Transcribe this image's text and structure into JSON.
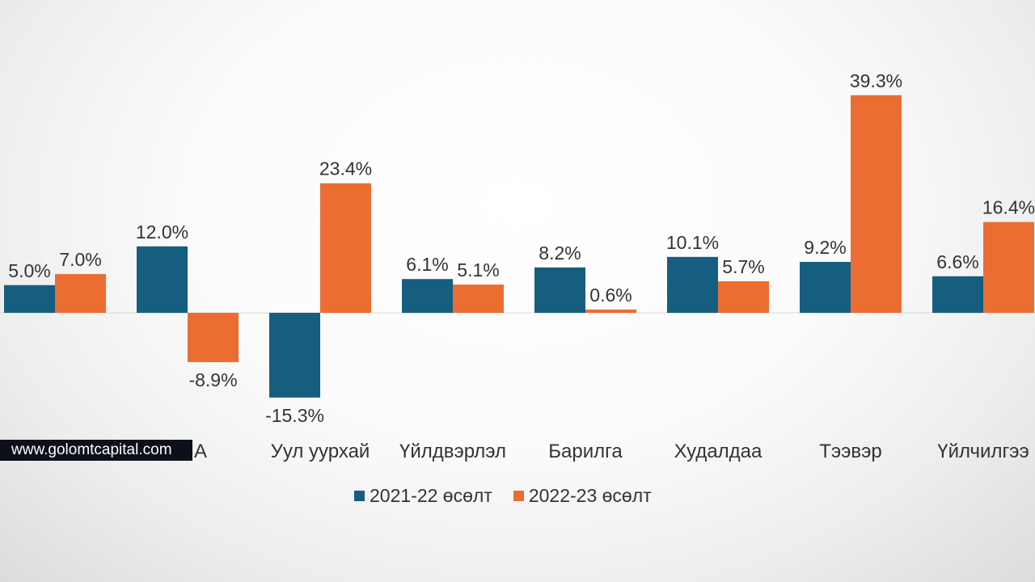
{
  "chart_data": {
    "type": "bar",
    "categories": [
      "",
      "",
      "Уул уурхай",
      "Үйлдвэрлэл",
      "Барилга",
      "Худалдаа",
      "Тээвэр",
      "Үйлчилгээ"
    ],
    "category_labels_visible": [
      "",
      "А",
      "Уул уурхай",
      "Үйлдвэрлэл",
      "Барилга",
      "Худалдаа",
      "Тээвэр",
      "Үйлчилгээ"
    ],
    "series": [
      {
        "name": "2021-22 өсөлт",
        "color": "#165e7f",
        "values": [
          5.0,
          12.0,
          -15.3,
          6.1,
          8.2,
          10.1,
          9.2,
          6.6
        ],
        "labels": [
          "5.0%",
          "12.0%",
          "-15.3%",
          "6.1%",
          "8.2%",
          "10.1%",
          "9.2%",
          "6.6%"
        ]
      },
      {
        "name": "2022-23 өсөлт",
        "color": "#eb6d32",
        "values": [
          7.0,
          -8.9,
          23.4,
          5.1,
          0.6,
          5.7,
          39.3,
          16.4
        ],
        "labels": [
          "7.0%",
          "-8.9%",
          "23.4%",
          "5.1%",
          "0.6%",
          "5.7%",
          "39.3%",
          "16.4%"
        ]
      }
    ],
    "title": "",
    "xlabel": "",
    "ylabel": "",
    "ylim": [
      -16,
      42
    ],
    "grid": false,
    "legend_position": "bottom"
  },
  "watermark": {
    "text": "www.golomtcapital.com"
  }
}
